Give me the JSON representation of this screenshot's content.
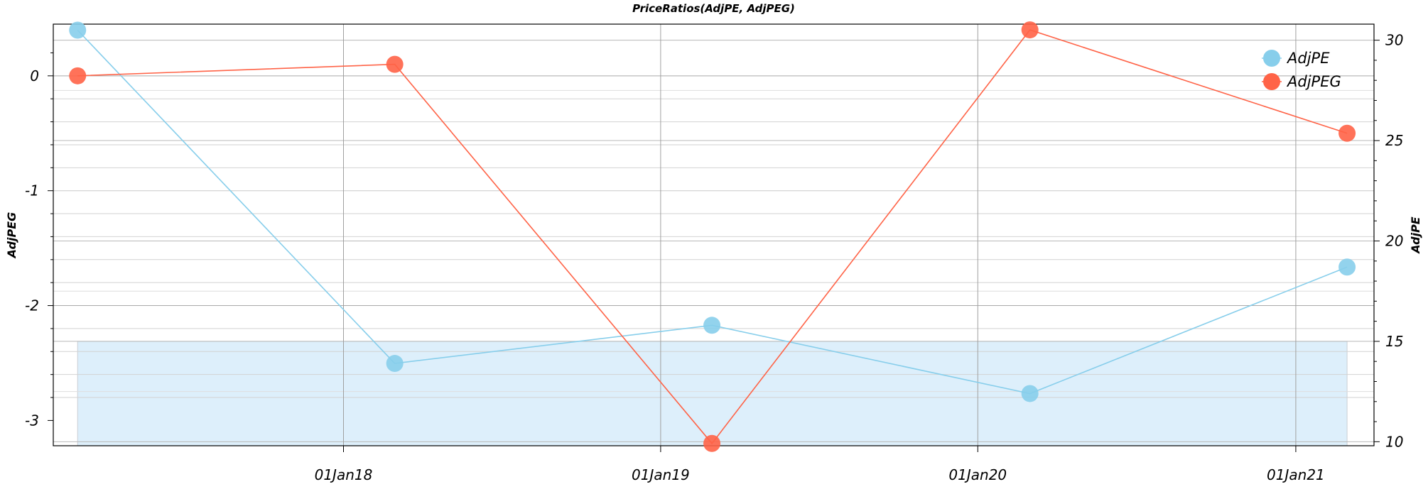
{
  "chart_data": {
    "type": "line",
    "title": "PriceRatios(AdjPE, AdjPEG)",
    "x": [
      "2017-03-01",
      "2018-03-01",
      "2019-03-01",
      "2020-03-01",
      "2021-03-01"
    ],
    "x_ticks": [
      {
        "date": "2018-01-01",
        "label": "01Jan18"
      },
      {
        "date": "2019-01-01",
        "label": "01Jan19"
      },
      {
        "date": "2020-01-01",
        "label": "01Jan20"
      },
      {
        "date": "2021-01-01",
        "label": "01Jan21"
      }
    ],
    "y_left": {
      "label": "AdjPEG",
      "range": [
        -3.22,
        0.45
      ],
      "ticks": [
        0,
        -1,
        -2,
        -3
      ],
      "tick_labels": [
        "0",
        "-1",
        "-2",
        "-3"
      ]
    },
    "y_right": {
      "label": "AdjPE",
      "range": [
        9.8,
        30.8
      ],
      "ticks": [
        10,
        15,
        20,
        25,
        30
      ],
      "tick_labels": [
        "10",
        "15",
        "20",
        "25",
        "30"
      ]
    },
    "series": [
      {
        "name": "AdjPE",
        "axis": "right",
        "color": "#87CEEB",
        "values": [
          30.5,
          13.9,
          15.8,
          12.4,
          18.7
        ]
      },
      {
        "name": "AdjPEG",
        "axis": "left",
        "color": "#FF6347",
        "values": [
          0.0,
          0.1,
          -3.2,
          0.4,
          -0.5
        ]
      }
    ],
    "shaded_band": {
      "axis": "right",
      "from": 9.8,
      "to": 15.0,
      "color": "#DDEFFB"
    },
    "grid": true,
    "legend_position": "top-right"
  }
}
